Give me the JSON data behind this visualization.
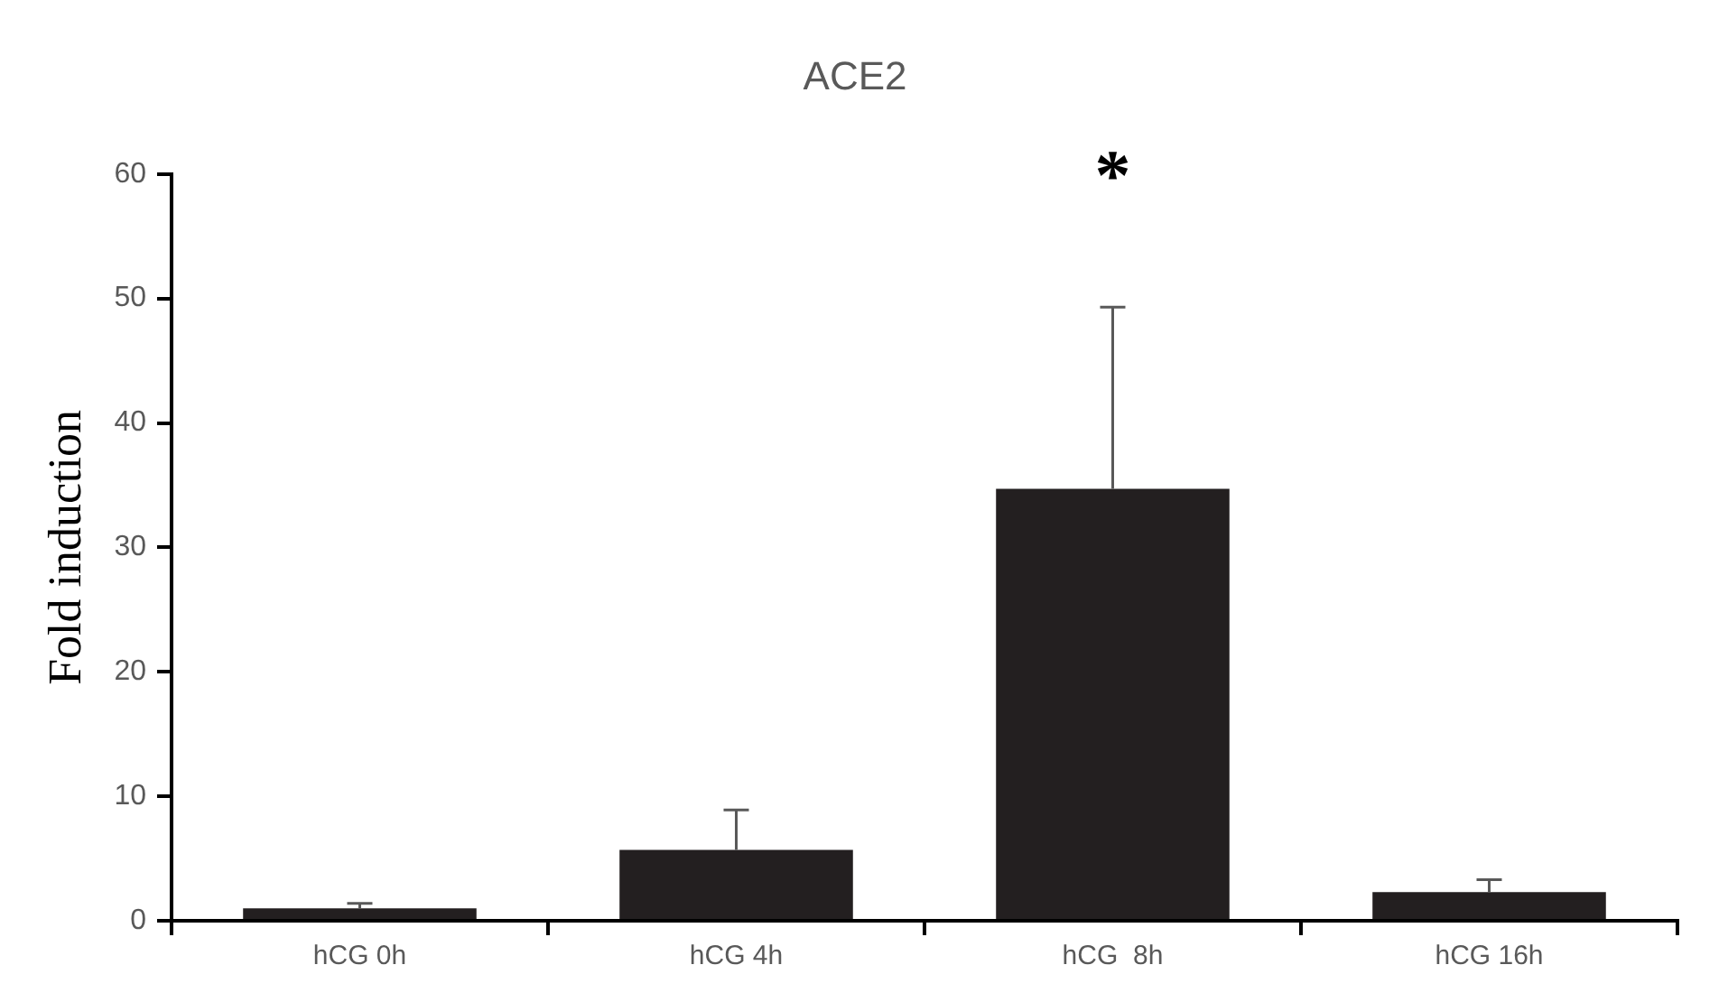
{
  "chart_data": {
    "type": "bar",
    "title": "ACE2",
    "ylabel": "Fold induction",
    "categories": [
      "hCG 0h",
      "hCG 4h",
      "hCG  8h",
      "hCG 16h"
    ],
    "values": [
      1.0,
      5.7,
      34.7,
      2.3
    ],
    "errors": [
      [
        1.0,
        1.4
      ],
      [
        5.7,
        8.9
      ],
      [
        34.7,
        49.3
      ],
      [
        2.3,
        3.3
      ]
    ],
    "color": "#231f20",
    "ylim": [
      0,
      60
    ],
    "yticks": [
      0,
      10,
      20,
      30,
      40,
      50,
      60
    ],
    "grid": false,
    "legend": false,
    "annotations": [
      "*"
    ]
  }
}
